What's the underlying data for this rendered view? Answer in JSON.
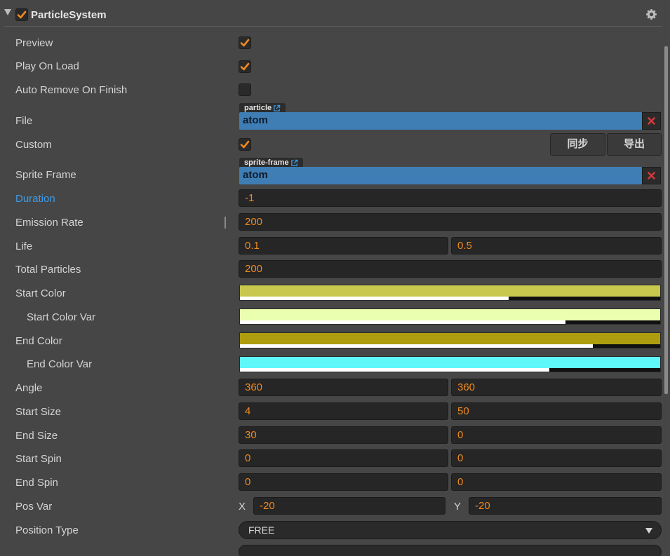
{
  "header": {
    "title": "ParticleSystem",
    "enabled": true
  },
  "rows": {
    "preview": {
      "label": "Preview",
      "checked": true
    },
    "play_on_load": {
      "label": "Play On Load",
      "checked": true
    },
    "auto_remove": {
      "label": "Auto Remove On Finish",
      "checked": false
    },
    "file": {
      "label": "File",
      "type_tag": "particle",
      "value": "atom"
    },
    "custom": {
      "label": "Custom",
      "checked": true,
      "sync_button": "同步",
      "export_button": "导出"
    },
    "sprite_frame": {
      "label": "Sprite Frame",
      "type_tag": "sprite-frame",
      "value": "atom"
    },
    "duration": {
      "label": "Duration",
      "value": "-1"
    },
    "emission_rate": {
      "label": "Emission Rate",
      "value": "200"
    },
    "life": {
      "label": "Life",
      "value": "0.1",
      "var": "0.5"
    },
    "total_particles": {
      "label": "Total Particles",
      "value": "200"
    },
    "start_color": {
      "label": "Start Color",
      "color": "#c8c84e",
      "alpha": 0.64
    },
    "start_color_var": {
      "label": "Start Color Var",
      "color": "#eaffb0",
      "alpha": 0.775
    },
    "end_color": {
      "label": "End Color",
      "color": "#ae9e0f",
      "alpha": 0.84
    },
    "end_color_var": {
      "label": "End Color Var",
      "color": "#5ff8fa",
      "alpha": 0.737
    },
    "angle": {
      "label": "Angle",
      "value": "360",
      "var": "360"
    },
    "start_size": {
      "label": "Start Size",
      "value": "4",
      "var": "50"
    },
    "end_size": {
      "label": "End Size",
      "value": "30",
      "var": "0"
    },
    "start_spin": {
      "label": "Start Spin",
      "value": "0",
      "var": "0"
    },
    "end_spin": {
      "label": "End Spin",
      "value": "0",
      "var": "0"
    },
    "pos_var": {
      "label": "Pos Var",
      "x_label": "X",
      "x": "-20",
      "y_label": "Y",
      "y": "-20"
    },
    "position_type": {
      "label": "Position Type",
      "value": "FREE"
    }
  },
  "colors": {
    "accent": "#f0891e",
    "asset": "#3f7db5",
    "link_label": "#3e9be8",
    "clear": "#d03a3a"
  }
}
